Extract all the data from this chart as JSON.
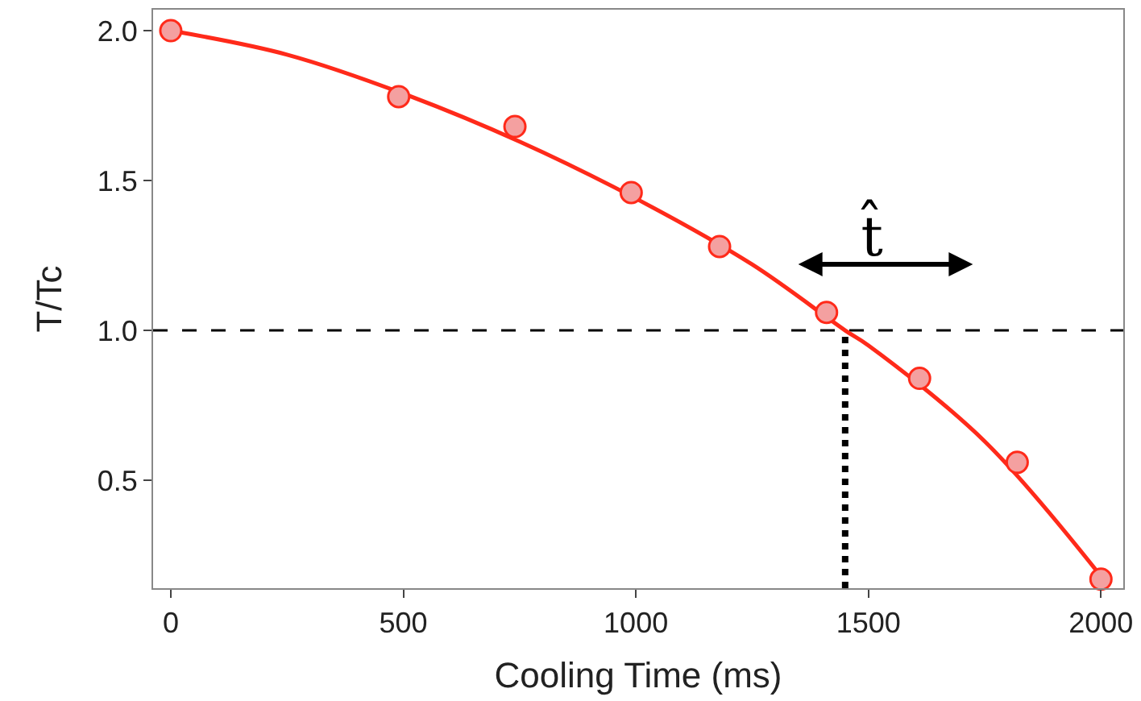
{
  "chart_data": {
    "type": "scatter",
    "xlabel": "Cooling Time (ms)",
    "ylabel": "T/Tc",
    "xlim": [
      -38,
      2048
    ],
    "ylim": [
      0.14,
      2.07
    ],
    "xticks": [
      0,
      500,
      1000,
      1500,
      2000
    ],
    "yticks": [
      {
        "value": 0.5,
        "label": "0.5"
      },
      {
        "value": 1,
        "label": "1.0"
      },
      {
        "value": 1.5,
        "label": "1.5"
      },
      {
        "value": 2,
        "label": "2.0"
      }
    ],
    "grid": false,
    "legend": false,
    "series": [
      {
        "color": "#f4a0a0",
        "marker": "circle",
        "x": [
          0,
          490,
          740,
          990,
          1180,
          1410,
          1610,
          1820,
          2000
        ],
        "values": [
          2.0,
          1.78,
          1.68,
          1.46,
          1.28,
          1.06,
          0.84,
          0.56,
          0.17
        ]
      },
      {
        "type": "line",
        "color": "#ff2a1a",
        "marker": "none",
        "x": [
          0,
          250,
          500,
          750,
          1000,
          1250,
          1450,
          1500,
          1750,
          2000
        ],
        "values": [
          2.0,
          1.92,
          1.79,
          1.63,
          1.44,
          1.22,
          1.0,
          0.95,
          0.63,
          0.18
        ]
      }
    ],
    "ref_lines": [
      {
        "axis": "y",
        "value": 1.0,
        "line_style": "dashed",
        "color": "#000000"
      },
      {
        "axis": "x",
        "value": 1450,
        "line_style": "dotted",
        "color": "#000000"
      }
    ],
    "annotations": [
      "t̂"
    ]
  }
}
